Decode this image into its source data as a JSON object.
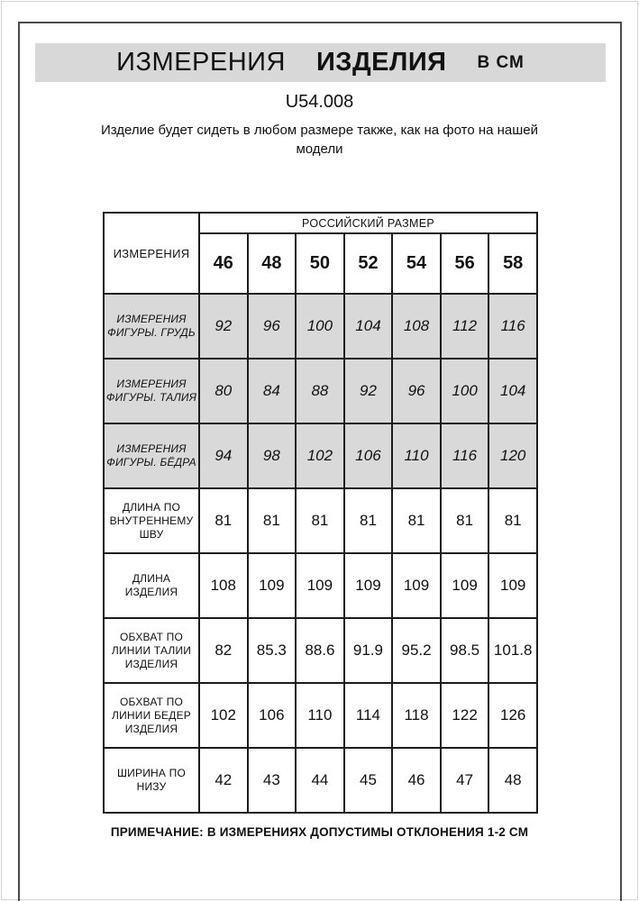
{
  "page": {
    "title_part_measurements": "ИЗМЕРЕНИЯ",
    "title_part_product": "ИЗДЕЛИЯ",
    "title_unit": "В СМ",
    "article_number": "U54.008",
    "subtitle": "Изделие будет сидеть в любом размере также, как на фото на нашей модели",
    "note": "ПРИМЕЧАНИЕ: В ИЗМЕРЕНИЯХ ДОПУСТИМЫ ОТКЛОНЕНИЯ 1-2 СМ"
  },
  "table": {
    "corner_label": "ИЗМЕРЕНИЯ",
    "size_group_label": "РОССИЙСКИЙ РАЗМЕР",
    "sizes": [
      "46",
      "48",
      "50",
      "52",
      "54",
      "56",
      "58"
    ],
    "rows": [
      {
        "label": "ИЗМЕРЕНИЯ ФИГУРЫ. ГРУДЬ",
        "values": [
          "92",
          "96",
          "100",
          "104",
          "108",
          "112",
          "116"
        ],
        "shaded": true
      },
      {
        "label": "ИЗМЕРЕНИЯ ФИГУРЫ. ТАЛИЯ",
        "values": [
          "80",
          "84",
          "88",
          "92",
          "96",
          "100",
          "104"
        ],
        "shaded": true
      },
      {
        "label": "ИЗМЕРЕНИЯ ФИГУРЫ. БЁДРА",
        "values": [
          "94",
          "98",
          "102",
          "106",
          "110",
          "116",
          "120"
        ],
        "shaded": true
      },
      {
        "label": "ДЛИНА ПО ВНУТРЕННЕМУ ШВУ",
        "values": [
          "81",
          "81",
          "81",
          "81",
          "81",
          "81",
          "81"
        ],
        "shaded": false
      },
      {
        "label": "ДЛИНА ИЗДЕЛИЯ",
        "values": [
          "108",
          "109",
          "109",
          "109",
          "109",
          "109",
          "109"
        ],
        "shaded": false
      },
      {
        "label": "ОБХВАТ ПО ЛИНИИ ТАЛИИ ИЗДЕЛИЯ",
        "values": [
          "82",
          "85.3",
          "88.6",
          "91.9",
          "95.2",
          "98.5",
          "101.8"
        ],
        "shaded": false
      },
      {
        "label": "ОБХВАТ ПО ЛИНИИ БЕДЕР ИЗДЕЛИЯ",
        "values": [
          "102",
          "106",
          "110",
          "114",
          "118",
          "122",
          "126"
        ],
        "shaded": false
      },
      {
        "label": "ШИРИНА ПО НИЗУ",
        "values": [
          "42",
          "43",
          "44",
          "45",
          "46",
          "47",
          "48"
        ],
        "shaded": false
      }
    ]
  },
  "colors": {
    "shaded_cell": "#d9d9d9",
    "title_bar": "#d8d8d8",
    "table_border": "#1c1c1c",
    "frame": "#4a4a4a"
  }
}
